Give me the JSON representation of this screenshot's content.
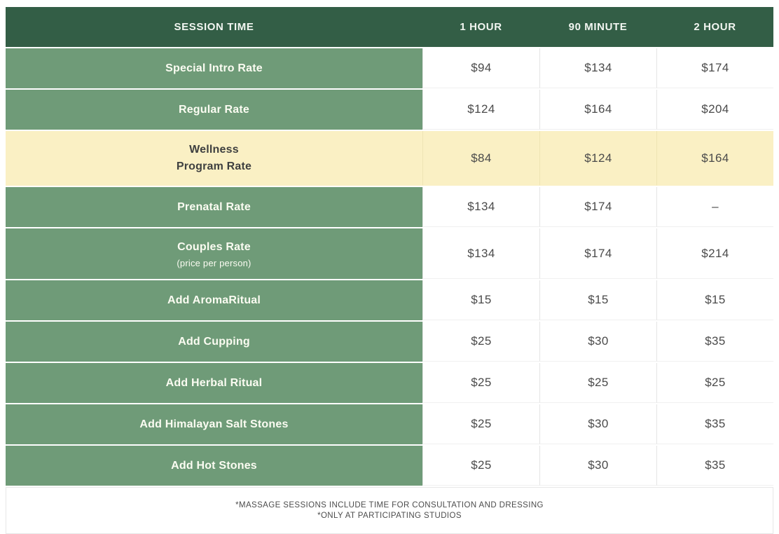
{
  "table": {
    "columns": [
      "SESSION TIME",
      "1 HOUR",
      "90 MINUTE",
      "2 HOUR"
    ],
    "rows": [
      {
        "label": "Special Intro Rate",
        "values": [
          "$94",
          "$134",
          "$174"
        ],
        "highlight": false
      },
      {
        "label": "Regular Rate",
        "values": [
          "$124",
          "$164",
          "$204"
        ],
        "highlight": false
      },
      {
        "label": "Wellness\nProgram Rate",
        "values": [
          "$84",
          "$124",
          "$164"
        ],
        "highlight": true
      },
      {
        "label": "Prenatal Rate",
        "values": [
          "$134",
          "$174",
          "–"
        ],
        "highlight": false
      },
      {
        "label": "Couples Rate",
        "sublabel": "(price per person)",
        "values": [
          "$134",
          "$174",
          "$214"
        ],
        "highlight": false
      },
      {
        "label": "Add AromaRitual",
        "values": [
          "$15",
          "$15",
          "$15"
        ],
        "highlight": false
      },
      {
        "label": "Add Cupping",
        "values": [
          "$25",
          "$30",
          "$35"
        ],
        "highlight": false
      },
      {
        "label": "Add Herbal Ritual",
        "values": [
          "$25",
          "$25",
          "$25"
        ],
        "highlight": false
      },
      {
        "label": "Add Himalayan Salt Stones",
        "values": [
          "$25",
          "$30",
          "$35"
        ],
        "highlight": false
      },
      {
        "label": "Add Hot Stones",
        "values": [
          "$25",
          "$30",
          "$35"
        ],
        "highlight": false
      }
    ]
  },
  "footnotes": {
    "line1": "*MASSAGE SESSIONS INCLUDE TIME FOR CONSULTATION AND DRESSING",
    "line2": "*ONLY AT PARTICIPATING STUDIOS"
  },
  "colors": {
    "header_bg": "#335e46",
    "label_bg": "#6f9b78",
    "highlight_bg": "#faf0c4",
    "header_text": "#f2f6f1",
    "label_text": "#fbfcf2",
    "value_text": "#4a4a4a",
    "divider": "#e4e4e4"
  }
}
